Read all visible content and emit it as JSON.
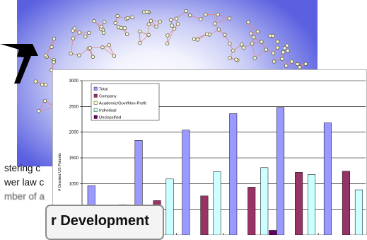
{
  "snippet_lines": [
    "stering c",
    "wer law c",
    "mber of a"
  ],
  "callout_text": "r Development",
  "colors": {
    "total": "#9999ff",
    "company": "#993366",
    "academic": "#ffffcc",
    "individual": "#ccffff",
    "unclassified": "#660066"
  },
  "chart_data": {
    "type": "bar",
    "ylabel": "# Granted US Patents",
    "ylim": [
      0,
      3000
    ],
    "yticks": [
      0,
      500,
      1000,
      1500,
      2000,
      2500,
      3000
    ],
    "grid": true,
    "legend_position": "top-left",
    "categories": [
      "",
      "",
      "",
      "",
      "",
      ""
    ],
    "series": [
      {
        "name": "Total",
        "values": [
          960,
          1840,
          2040,
          2360,
          2480,
          2180
        ]
      },
      {
        "name": "Company",
        "values": [
          0,
          670,
          760,
          930,
          1220,
          1240
        ]
      },
      {
        "name": "Academic/Govt/Non-Profit",
        "values": [
          0,
          0,
          0,
          0,
          0,
          0
        ]
      },
      {
        "name": "Individual",
        "values": [
          590,
          1090,
          1230,
          1310,
          1180,
          880
        ]
      },
      {
        "name": "Unclassified",
        "values": [
          0,
          0,
          0,
          90,
          0,
          0
        ]
      }
    ]
  }
}
